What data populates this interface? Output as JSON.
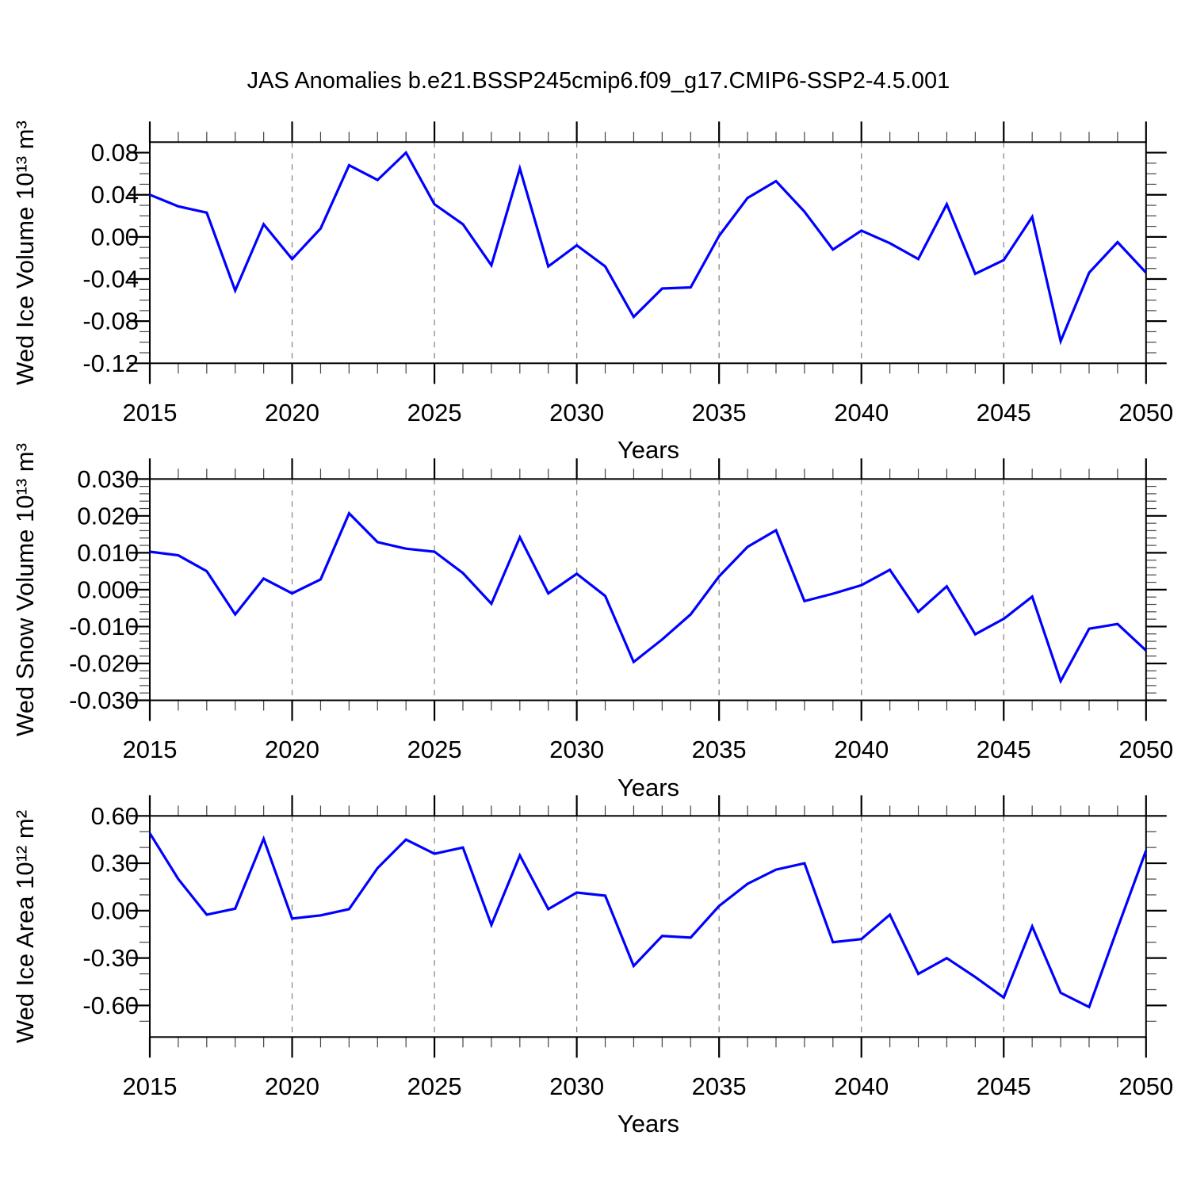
{
  "title": "JAS Anomalies b.e21.BSSP245cmip6.f09_g17.CMIP6-SSP2-4.5.001",
  "line_color": "#0000ff",
  "grid_years": [
    2020,
    2025,
    2030,
    2035,
    2040,
    2045
  ],
  "x_tick_labels": [
    "2015",
    "2020",
    "2025",
    "2030",
    "2035",
    "2040",
    "2045",
    "2050"
  ],
  "x_tick_values": [
    2015,
    2020,
    2025,
    2030,
    2035,
    2040,
    2045,
    2050
  ],
  "chart_data": [
    {
      "type": "line",
      "ylabel": "Wed Ice Volume 10¹³ m³",
      "xlabel": "Years",
      "xlim": [
        2015,
        2050
      ],
      "ylim": [
        -0.12,
        0.09
      ],
      "y_minor_step": 0.01,
      "x_minor_step": 1,
      "grid": "vertical-dashed",
      "ytick_labels": [
        "0.08",
        "0.04",
        "0.00",
        "-0.04",
        "-0.08",
        "-0.12"
      ],
      "ytick_values": [
        0.08,
        0.04,
        0.0,
        -0.04,
        -0.08,
        -0.12
      ],
      "x": [
        2015,
        2016,
        2017,
        2018,
        2019,
        2020,
        2021,
        2022,
        2023,
        2024,
        2025,
        2026,
        2027,
        2028,
        2029,
        2030,
        2031,
        2032,
        2033,
        2034,
        2035,
        2036,
        2037,
        2038,
        2039,
        2040,
        2041,
        2042,
        2043,
        2044,
        2045,
        2046,
        2047,
        2048,
        2049,
        2050
      ],
      "values": [
        0.04,
        0.029,
        0.023,
        -0.051,
        0.012,
        -0.021,
        0.008,
        0.068,
        0.054,
        0.08,
        0.031,
        0.012,
        -0.027,
        0.065,
        -0.028,
        -0.008,
        -0.028,
        -0.076,
        -0.049,
        -0.048,
        0.001,
        0.037,
        0.053,
        0.024,
        -0.012,
        0.006,
        -0.006,
        -0.021,
        0.031,
        -0.035,
        -0.022,
        0.019,
        -0.099,
        -0.034,
        -0.005,
        -0.034
      ]
    },
    {
      "type": "line",
      "ylabel": "Wed Snow Volume 10¹³ m³",
      "xlabel": "Years",
      "xlim": [
        2015,
        2050
      ],
      "ylim": [
        -0.03,
        0.03
      ],
      "y_minor_step": 0.002,
      "x_minor_step": 1,
      "grid": "vertical-dashed",
      "ytick_labels": [
        "0.030",
        "0.020",
        "0.010",
        "0.000",
        "-0.010",
        "-0.020",
        "-0.030"
      ],
      "ytick_values": [
        0.03,
        0.02,
        0.01,
        0.0,
        -0.01,
        -0.02,
        -0.03
      ],
      "x": [
        2015,
        2016,
        2017,
        2018,
        2019,
        2020,
        2021,
        2022,
        2023,
        2024,
        2025,
        2026,
        2027,
        2028,
        2029,
        2030,
        2031,
        2032,
        2033,
        2034,
        2035,
        2036,
        2037,
        2038,
        2039,
        2040,
        2041,
        2042,
        2043,
        2044,
        2045,
        2046,
        2047,
        2048,
        2049,
        2050
      ],
      "values": [
        0.0103,
        0.0093,
        0.005,
        -0.0067,
        0.003,
        -0.001,
        0.0028,
        0.0207,
        0.0129,
        0.0111,
        0.0103,
        0.0045,
        -0.0038,
        0.0142,
        -0.001,
        0.0043,
        -0.0017,
        -0.0196,
        -0.0135,
        -0.0067,
        0.0036,
        0.0116,
        0.0161,
        -0.0031,
        -0.0011,
        0.0012,
        0.0054,
        -0.006,
        0.0009,
        -0.0121,
        -0.0079,
        -0.0019,
        -0.0248,
        -0.0106,
        -0.0093,
        -0.0165
      ]
    },
    {
      "type": "line",
      "ylabel": "Wed Ice Area 10¹² m²",
      "xlabel": "Years",
      "xlim": [
        2015,
        2050
      ],
      "ylim": [
        -0.8,
        0.6
      ],
      "y_minor_step": 0.1,
      "x_minor_step": 1,
      "grid": "vertical-dashed",
      "ytick_labels": [
        "0.60",
        "0.30",
        "0.00",
        "-0.30",
        "-0.60"
      ],
      "ytick_values": [
        0.6,
        0.3,
        0.0,
        -0.3,
        -0.6
      ],
      "x": [
        2015,
        2016,
        2017,
        2018,
        2019,
        2020,
        2021,
        2022,
        2023,
        2024,
        2025,
        2026,
        2027,
        2028,
        2029,
        2030,
        2031,
        2032,
        2033,
        2034,
        2035,
        2036,
        2037,
        2038,
        2039,
        2040,
        2041,
        2042,
        2043,
        2044,
        2045,
        2046,
        2047,
        2048,
        2049,
        2050
      ],
      "values": [
        0.49,
        0.2,
        -0.025,
        0.013,
        0.455,
        -0.05,
        -0.03,
        0.01,
        0.27,
        0.45,
        0.36,
        0.4,
        -0.09,
        0.35,
        0.01,
        0.115,
        0.095,
        -0.35,
        -0.16,
        -0.17,
        0.03,
        0.17,
        0.26,
        0.3,
        -0.2,
        -0.18,
        -0.025,
        -0.4,
        -0.3,
        -0.42,
        -0.55,
        -0.1,
        -0.52,
        -0.61,
        -0.11,
        0.38
      ]
    }
  ]
}
